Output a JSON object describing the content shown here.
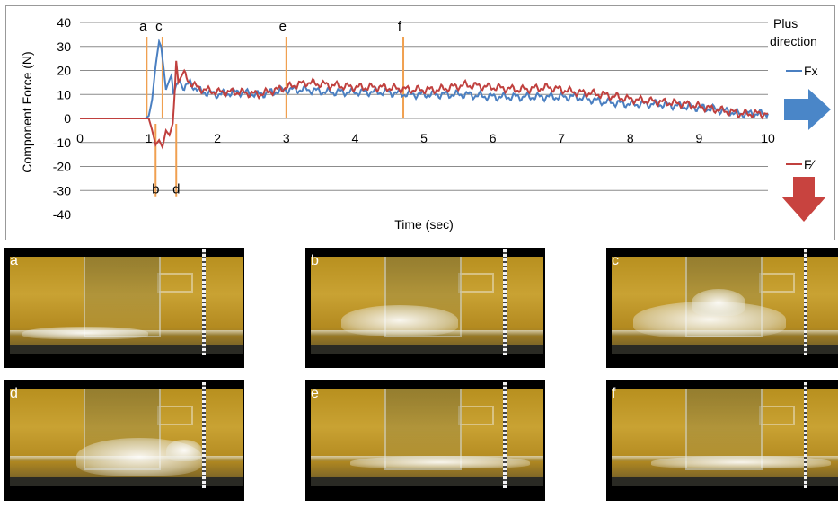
{
  "chart_data": {
    "type": "line",
    "xlabel": "Time (sec)",
    "ylabel": "Component Force (N)",
    "xlim": [
      0,
      10
    ],
    "ylim": [
      -40,
      40
    ],
    "x_ticks": [
      "0",
      "1",
      "2",
      "3",
      "4",
      "5",
      "6",
      "7",
      "8",
      "9",
      "10"
    ],
    "y_ticks": [
      "40",
      "30",
      "20",
      "10",
      "0",
      "-10",
      "-20",
      "-30",
      "-40"
    ],
    "grid": "horizontal",
    "legend_title": "Plus direction",
    "series": [
      {
        "name": "Fx",
        "color": "#4a7fc1",
        "points": [
          [
            0,
            0
          ],
          [
            0.5,
            0
          ],
          [
            0.95,
            0
          ],
          [
            1.0,
            1
          ],
          [
            1.05,
            8
          ],
          [
            1.1,
            22
          ],
          [
            1.15,
            32
          ],
          [
            1.18,
            30
          ],
          [
            1.22,
            20
          ],
          [
            1.25,
            12
          ],
          [
            1.3,
            16
          ],
          [
            1.33,
            18
          ],
          [
            1.36,
            10
          ],
          [
            1.4,
            14
          ],
          [
            1.45,
            16
          ],
          [
            1.5,
            12
          ],
          [
            1.6,
            15
          ],
          [
            1.7,
            12
          ],
          [
            1.8,
            11
          ],
          [
            2.0,
            10
          ],
          [
            2.3,
            11
          ],
          [
            2.6,
            10
          ],
          [
            3.0,
            12
          ],
          [
            3.3,
            12
          ],
          [
            3.6,
            11
          ],
          [
            4.0,
            11
          ],
          [
            4.4,
            11
          ],
          [
            4.8,
            10
          ],
          [
            5.2,
            10
          ],
          [
            5.6,
            10
          ],
          [
            6.0,
            9
          ],
          [
            6.4,
            9
          ],
          [
            6.8,
            9
          ],
          [
            7.2,
            9
          ],
          [
            7.6,
            7
          ],
          [
            8.0,
            6
          ],
          [
            8.4,
            6
          ],
          [
            8.8,
            5
          ],
          [
            9.2,
            4
          ],
          [
            9.6,
            2
          ],
          [
            10.0,
            2
          ]
        ]
      },
      {
        "name": "Fz",
        "color": "#c0403e",
        "points": [
          [
            0,
            0
          ],
          [
            0.5,
            0
          ],
          [
            0.95,
            0
          ],
          [
            1.0,
            0
          ],
          [
            1.05,
            -5
          ],
          [
            1.1,
            -11
          ],
          [
            1.15,
            -9
          ],
          [
            1.2,
            -12
          ],
          [
            1.25,
            -5
          ],
          [
            1.3,
            -7
          ],
          [
            1.35,
            -2
          ],
          [
            1.38,
            12
          ],
          [
            1.4,
            24
          ],
          [
            1.43,
            15
          ],
          [
            1.5,
            19
          ],
          [
            1.6,
            15
          ],
          [
            1.7,
            13
          ],
          [
            1.8,
            12
          ],
          [
            2.0,
            11
          ],
          [
            2.3,
            11
          ],
          [
            2.6,
            10
          ],
          [
            3.0,
            13
          ],
          [
            3.3,
            15
          ],
          [
            3.6,
            14
          ],
          [
            4.0,
            13
          ],
          [
            4.4,
            13
          ],
          [
            4.8,
            12
          ],
          [
            5.2,
            12
          ],
          [
            5.6,
            14
          ],
          [
            6.0,
            13
          ],
          [
            6.4,
            12
          ],
          [
            6.8,
            13
          ],
          [
            7.2,
            11
          ],
          [
            7.6,
            10
          ],
          [
            8.0,
            8
          ],
          [
            8.4,
            7
          ],
          [
            8.8,
            6
          ],
          [
            9.2,
            4
          ],
          [
            9.6,
            2
          ],
          [
            10.0,
            2
          ]
        ]
      }
    ],
    "markers": [
      {
        "label": "a",
        "x": 0.97,
        "label_position": "top"
      },
      {
        "label": "b",
        "x": 1.1,
        "label_position": "bottom"
      },
      {
        "label": "c",
        "x": 1.2,
        "label_position": "top"
      },
      {
        "label": "d",
        "x": 1.4,
        "label_position": "bottom"
      },
      {
        "label": "e",
        "x": 3.0,
        "label_position": "top"
      },
      {
        "label": "f",
        "x": 4.7,
        "label_position": "top"
      }
    ],
    "marker_color": "#f0a050"
  },
  "legend": {
    "title_line1": "Plus",
    "title_line2": "direction",
    "fx_label": "Fx",
    "fz_label": "F⁄",
    "fx_arrow": "right-arrow",
    "fz_arrow": "down-arrow"
  },
  "frames": [
    {
      "label": "a",
      "stage": "initial"
    },
    {
      "label": "b",
      "stage": "impact"
    },
    {
      "label": "c",
      "stage": "run-up"
    },
    {
      "label": "d",
      "stage": "overtop"
    },
    {
      "label": "e",
      "stage": "settled"
    },
    {
      "label": "f",
      "stage": "settled"
    }
  ]
}
